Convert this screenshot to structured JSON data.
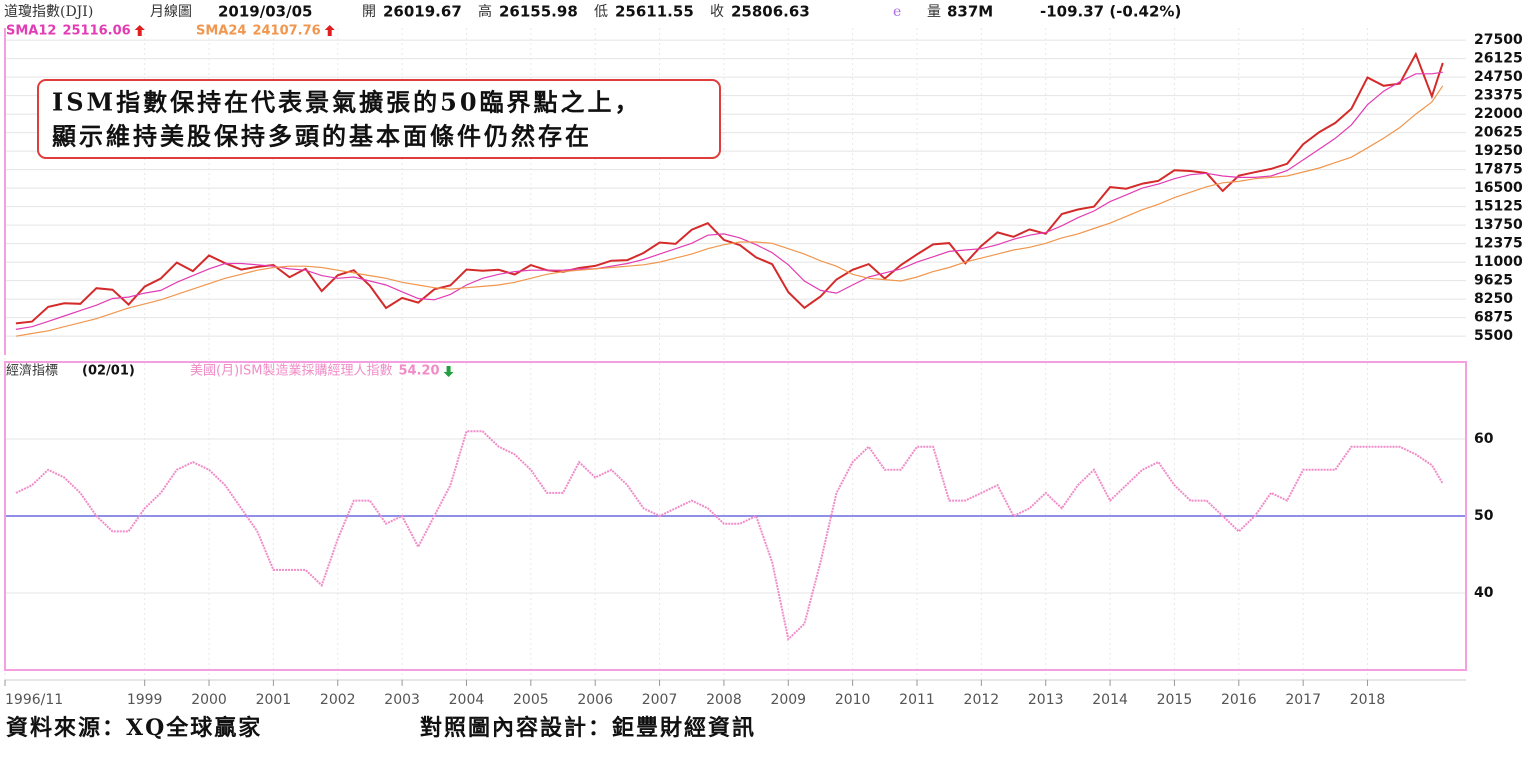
{
  "header": {
    "index": "道瓊指數(DJI)",
    "period": "月線圖",
    "date": "2019/03/05",
    "open_label": "開",
    "open": 26019.67,
    "high_label": "高",
    "high": 26155.98,
    "low_label": "低",
    "low": 25611.55,
    "close_label": "收",
    "close": 25806.63,
    "flag": "e",
    "volume_label": "量",
    "volume": "837M",
    "change": "-109.37 (-0.42%)"
  },
  "annotation": [
    "ISM指數保持在代表景氣擴張的50臨界點之上，",
    "顯示維持美股保持多頭的基本面條件仍然存在"
  ],
  "footer": [
    "資料來源：XQ全球贏家",
    "對照圖內容設計：鉅豐財經資訊"
  ],
  "chart_data": [
    {
      "type": "line",
      "x": [
        1997,
        1997.25,
        1997.5,
        1997.75,
        1998,
        1998.25,
        1998.5,
        1998.75,
        1999,
        1999.25,
        1999.5,
        1999.75,
        2000,
        2000.25,
        2000.5,
        2000.75,
        2001,
        2001.25,
        2001.5,
        2001.75,
        2002,
        2002.25,
        2002.5,
        2002.75,
        2003,
        2003.25,
        2003.5,
        2003.75,
        2004,
        2004.25,
        2004.5,
        2004.75,
        2005,
        2005.25,
        2005.5,
        2005.75,
        2006,
        2006.25,
        2006.5,
        2006.75,
        2007,
        2007.25,
        2007.5,
        2007.75,
        2008,
        2008.25,
        2008.5,
        2008.75,
        2009,
        2009.25,
        2009.5,
        2009.75,
        2010,
        2010.25,
        2010.5,
        2010.75,
        2011,
        2011.25,
        2011.5,
        2011.75,
        2012,
        2012.25,
        2012.5,
        2012.75,
        2013,
        2013.25,
        2013.5,
        2013.75,
        2014,
        2014.25,
        2014.5,
        2014.75,
        2015,
        2015.25,
        2015.5,
        2015.75,
        2016,
        2016.25,
        2016.5,
        2016.75,
        2017,
        2017.25,
        2017.5,
        2017.75,
        2018,
        2018.25,
        2018.5,
        2018.75,
        2019,
        2019.17
      ],
      "series": [
        {
          "color": "#d42a2a",
          "values": [
            6448,
            6583,
            7672,
            7945,
            7908,
            9063,
            8952,
            7842,
            9181,
            9786,
            10970,
            10337,
            11497,
            10922,
            10448,
            10650,
            10788,
            9879,
            10502,
            8848,
            10022,
            10404,
            9243,
            7592,
            8341,
            7992,
            8985,
            9275,
            10454,
            10358,
            10435,
            10080,
            10783,
            10404,
            10275,
            10568,
            10718,
            11109,
            11150,
            11679,
            12463,
            12354,
            13409,
            13896,
            12650,
            12263,
            11350,
            10851,
            8776,
            7609,
            8447,
            9712,
            10428,
            10857,
            9774,
            10788,
            11578,
            12320,
            12414,
            10913,
            12218,
            13212,
            12880,
            13437,
            13104,
            14579,
            14910,
            15130,
            16577,
            16458,
            16827,
            17043,
            17823,
            17776,
            17620,
            16285,
            17425,
            17685,
            17930,
            18308,
            19763,
            20663,
            21350,
            22405,
            24719,
            24103,
            24271,
            26458,
            23327,
            25806.63
          ]
        },
        {
          "name": "SMA12",
          "color": "#e23cb4",
          "values": [
            6000,
            6200,
            6600,
            7000,
            7400,
            7800,
            8300,
            8400,
            8700,
            8900,
            9500,
            10000,
            10500,
            10900,
            10900,
            10800,
            10700,
            10500,
            10400,
            10000,
            9800,
            9900,
            9600,
            9300,
            8800,
            8300,
            8200,
            8600,
            9300,
            9800,
            10100,
            10300,
            10400,
            10400,
            10400,
            10500,
            10500,
            10700,
            10900,
            11200,
            11600,
            12000,
            12400,
            13000,
            13100,
            12800,
            12300,
            11700,
            10800,
            9600,
            8900,
            8700,
            9300,
            9900,
            10200,
            10500,
            11000,
            11400,
            11800,
            11900,
            12000,
            12300,
            12700,
            13000,
            13200,
            13700,
            14300,
            14800,
            15500,
            16000,
            16500,
            16800,
            17200,
            17500,
            17600,
            17400,
            17300,
            17300,
            17400,
            17800,
            18600,
            19400,
            20200,
            21200,
            22700,
            23700,
            24400,
            25000,
            25000,
            25116.06
          ]
        },
        {
          "name": "SMA24",
          "color": "#f0964e",
          "values": [
            5500,
            5700,
            5900,
            6200,
            6500,
            6800,
            7200,
            7600,
            7900,
            8200,
            8600,
            9000,
            9400,
            9800,
            10100,
            10400,
            10600,
            10700,
            10700,
            10600,
            10400,
            10200,
            10000,
            9800,
            9500,
            9300,
            9100,
            9000,
            9100,
            9200,
            9300,
            9500,
            9800,
            10100,
            10300,
            10400,
            10500,
            10600,
            10700,
            10800,
            11000,
            11300,
            11600,
            12000,
            12300,
            12500,
            12500,
            12400,
            12000,
            11600,
            11100,
            10700,
            10100,
            9800,
            9700,
            9600,
            9900,
            10300,
            10600,
            11000,
            11300,
            11600,
            11900,
            12100,
            12400,
            12800,
            13100,
            13500,
            13900,
            14400,
            14900,
            15300,
            15800,
            16200,
            16600,
            16900,
            17000,
            17200,
            17300,
            17400,
            17700,
            18000,
            18400,
            18800,
            19500,
            20200,
            21000,
            22000,
            22900,
            24107.76
          ]
        }
      ],
      "xlim": [
        1996.83,
        2019.53
      ],
      "ylim": [
        4100,
        28400
      ],
      "yticks": [
        5500,
        6875,
        8250,
        9625,
        11000,
        12375,
        13750,
        15125,
        16500,
        17875,
        19250,
        20625,
        22000,
        23375,
        24750,
        26125,
        27500
      ],
      "grid": true
    },
    {
      "type": "line",
      "title": "經濟指標",
      "subtitle": "(02/01)",
      "x": [
        1997,
        1997.25,
        1997.5,
        1997.75,
        1998,
        1998.25,
        1998.5,
        1998.75,
        1999,
        1999.25,
        1999.5,
        1999.75,
        2000,
        2000.25,
        2000.5,
        2000.75,
        2001,
        2001.25,
        2001.5,
        2001.75,
        2002,
        2002.25,
        2002.5,
        2002.75,
        2003,
        2003.25,
        2003.5,
        2003.75,
        2004,
        2004.25,
        2004.5,
        2004.75,
        2005,
        2005.25,
        2005.5,
        2005.75,
        2006,
        2006.25,
        2006.5,
        2006.75,
        2007,
        2007.25,
        2007.5,
        2007.75,
        2008,
        2008.25,
        2008.5,
        2008.75,
        2009,
        2009.25,
        2009.5,
        2009.75,
        2010,
        2010.25,
        2010.5,
        2010.75,
        2011,
        2011.25,
        2011.5,
        2011.75,
        2012,
        2012.25,
        2012.5,
        2012.75,
        2013,
        2013.25,
        2013.5,
        2013.75,
        2014,
        2014.25,
        2014.5,
        2014.75,
        2015,
        2015.25,
        2015.5,
        2015.75,
        2016,
        2016.25,
        2016.5,
        2016.75,
        2017,
        2017.25,
        2017.5,
        2017.75,
        2018,
        2018.25,
        2018.5,
        2018.75,
        2019,
        2019.17
      ],
      "series": [
        {
          "name": "美國(月)ISM製造業採購經理人指數",
          "color": "#f08cc8",
          "latest": {
            "value": 54.2,
            "label": "54.20"
          },
          "values": [
            53,
            54,
            56,
            55,
            53,
            50,
            48,
            48,
            51,
            53,
            56,
            57,
            56,
            54,
            51,
            48,
            43,
            43,
            43,
            41,
            47,
            52,
            52,
            49,
            50,
            46,
            50,
            54,
            61,
            61,
            59,
            58,
            56,
            53,
            53,
            57,
            55,
            56,
            54,
            51,
            50,
            51,
            52,
            51,
            49,
            49,
            50,
            44,
            34,
            36,
            44,
            53,
            57,
            59,
            56,
            56,
            59,
            59,
            52,
            52,
            53,
            54,
            50,
            51,
            53,
            51,
            54,
            56,
            52,
            54,
            56,
            57,
            54,
            52,
            52,
            50,
            48,
            50,
            53,
            52,
            56,
            56,
            56,
            59,
            59,
            59,
            59,
            58,
            56.6,
            54.2
          ]
        }
      ],
      "reference_line": {
        "value": 50,
        "color": "#6a6ae0"
      },
      "xlim": [
        1996.83,
        2019.53
      ],
      "ylim": [
        30,
        70
      ],
      "yticks": [
        40,
        50,
        60
      ],
      "xticks": [
        {
          "value": 1996.83,
          "label": "1996/11"
        },
        1999,
        2000,
        2001,
        2002,
        2003,
        2004,
        2005,
        2006,
        2007,
        2008,
        2009,
        2010,
        2011,
        2012,
        2013,
        2014,
        2015,
        2016,
        2017,
        2018
      ],
      "grid": true
    }
  ]
}
